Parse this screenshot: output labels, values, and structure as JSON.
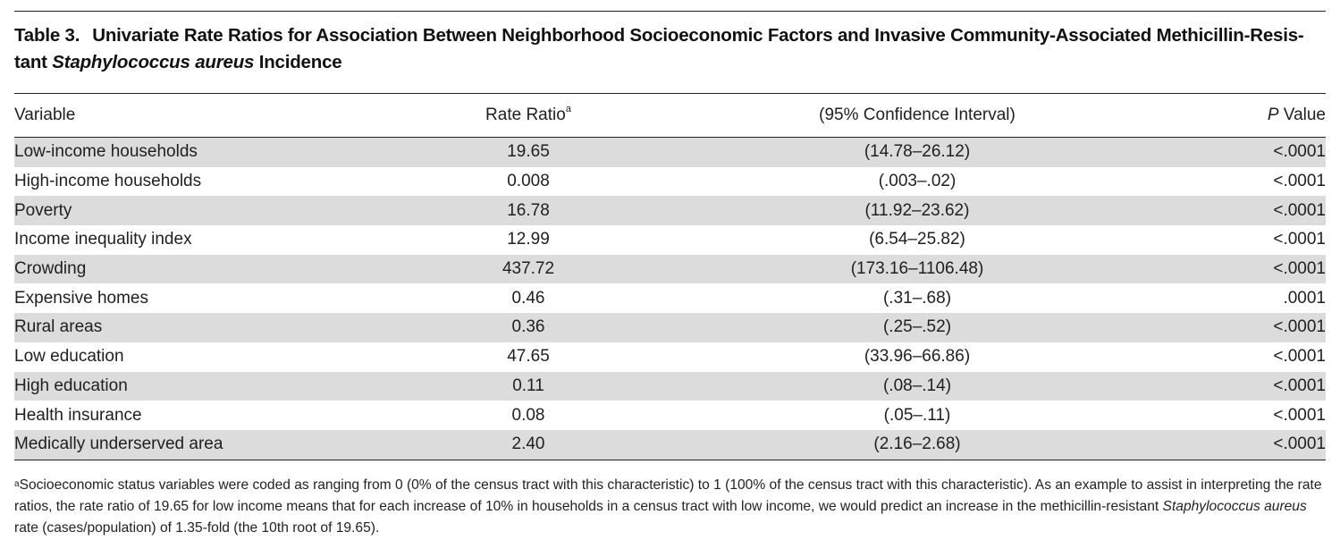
{
  "table": {
    "label": "Table 3.",
    "title_part1": "Univariate Rate Ratios for Association Between Neighborhood Socioeconomic Factors and Invasive Community-Associated Methicillin-Resis-tant ",
    "title_italic": "Staphylococcus aureus",
    "title_part2": " Incidence",
    "headers": {
      "variable": "Variable",
      "rate_ratio": "Rate Ratio",
      "rate_ratio_sup": "a",
      "ci": "(95% Confidence Interval)",
      "p_italic": "P",
      "p_rest": " Value"
    },
    "rows": [
      {
        "variable": "Low-income households",
        "rate_ratio": "19.65",
        "ci": "(14.78–26.12)",
        "p": "<.0001"
      },
      {
        "variable": "High-income households",
        "rate_ratio": "0.008",
        "ci": "(.003–.02)",
        "p": "<.0001"
      },
      {
        "variable": "Poverty",
        "rate_ratio": "16.78",
        "ci": "(11.92–23.62)",
        "p": "<.0001"
      },
      {
        "variable": "Income inequality index",
        "rate_ratio": "12.99",
        "ci": "(6.54–25.82)",
        "p": "<.0001"
      },
      {
        "variable": "Crowding",
        "rate_ratio": "437.72",
        "ci": "(173.16–1106.48)",
        "p": "<.0001"
      },
      {
        "variable": "Expensive homes",
        "rate_ratio": "0.46",
        "ci": "(.31–.68)",
        "p": ".0001"
      },
      {
        "variable": "Rural areas",
        "rate_ratio": "0.36",
        "ci": "(.25–.52)",
        "p": "<.0001"
      },
      {
        "variable": "Low education",
        "rate_ratio": "47.65",
        "ci": "(33.96–66.86)",
        "p": "<.0001"
      },
      {
        "variable": "High education",
        "rate_ratio": "0.11",
        "ci": "(.08–.14)",
        "p": "<.0001"
      },
      {
        "variable": "Health insurance",
        "rate_ratio": "0.08",
        "ci": "(.05–.11)",
        "p": "<.0001"
      },
      {
        "variable": "Medically underserved area",
        "rate_ratio": "2.40",
        "ci": "(2.16–2.68)",
        "p": "<.0001"
      }
    ],
    "footnote": {
      "marker": "a",
      "text_part1": "Socioeconomic status variables were coded as ranging from 0 (0% of the census tract with this characteristic) to 1 (100% of the census tract with this characteristic). As an example to assist in interpreting the rate ratios, the rate ratio of 19.65 for low income means that for each increase of 10% in households in a census tract with low income, we would predict an increase in the methicillin-resistant ",
      "text_italic": "Staphylococcus aureus",
      "text_part2": " rate (cases/population) of 1.35-fold (the 10th root of 19.65)."
    }
  }
}
